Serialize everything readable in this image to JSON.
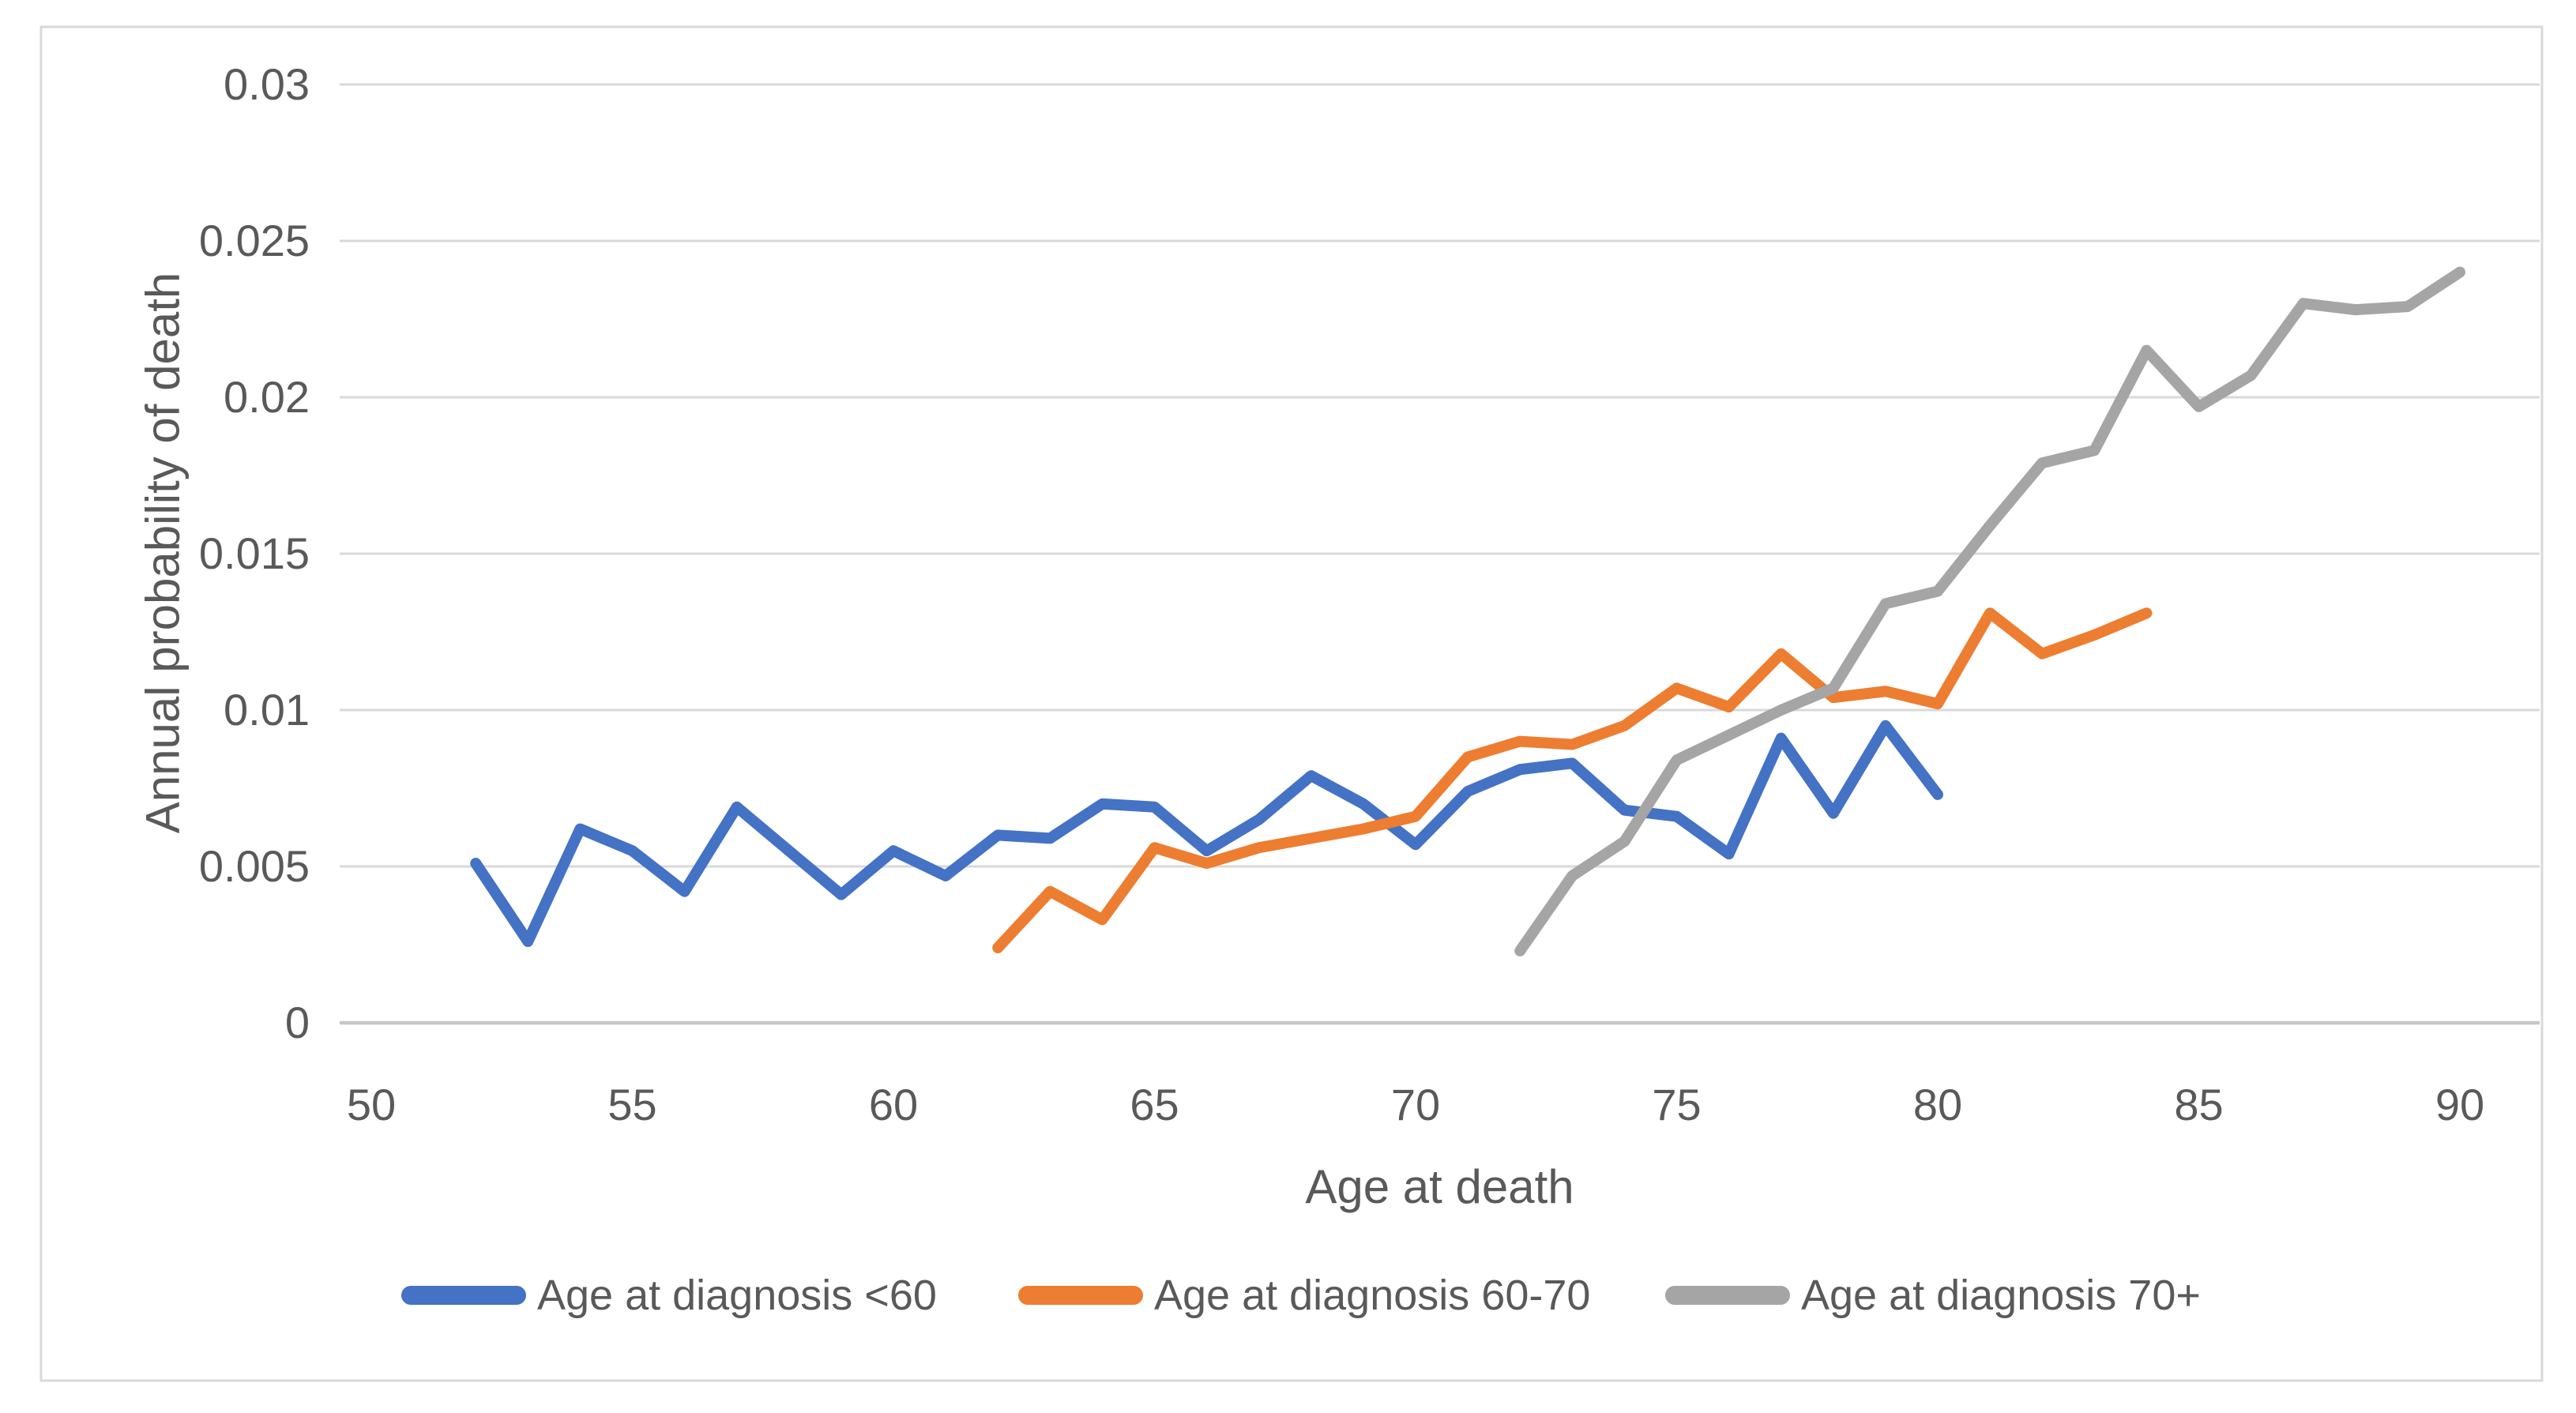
{
  "chart_data": {
    "type": "line",
    "title": "",
    "xlabel": "Age at death",
    "ylabel": "Annual probability of death",
    "xlim": [
      49.4,
      91.6
    ],
    "ylim": [
      0,
      0.03
    ],
    "x_ticks": [
      50,
      55,
      60,
      65,
      70,
      75,
      80,
      85,
      90
    ],
    "y_ticks": [
      0,
      0.005,
      0.01,
      0.015,
      0.02,
      0.025,
      0.03
    ],
    "y_tick_labels": [
      "0",
      "0.005",
      "0.01",
      "0.015",
      "0.02",
      "0.025",
      "0.03"
    ],
    "grid": true,
    "legend_position": "bottom",
    "series": [
      {
        "name": "Age at diagnosis <60",
        "color": "#4472C4",
        "x": [
          52,
          53,
          54,
          55,
          56,
          57,
          58,
          59,
          60,
          61,
          62,
          63,
          64,
          65,
          66,
          67,
          68,
          69,
          70,
          71,
          72,
          73,
          74,
          75,
          76,
          77,
          78,
          79,
          80
        ],
        "values": [
          0.0051,
          0.0026,
          0.0062,
          0.0055,
          0.0042,
          0.0069,
          0.0055,
          0.0041,
          0.0055,
          0.0047,
          0.006,
          0.0059,
          0.007,
          0.0069,
          0.0055,
          0.0065,
          0.0079,
          0.007,
          0.0057,
          0.0074,
          0.0081,
          0.0083,
          0.0068,
          0.0066,
          0.0054,
          0.0091,
          0.0067,
          0.0095,
          0.0073
        ]
      },
      {
        "name": "Age at diagnosis 60-70",
        "color": "#ED7D31",
        "x": [
          62,
          63,
          64,
          65,
          66,
          67,
          68,
          69,
          70,
          71,
          72,
          73,
          74,
          75,
          76,
          77,
          78,
          79,
          80,
          81,
          82,
          83,
          84
        ],
        "values": [
          0.0024,
          0.0042,
          0.0033,
          0.0056,
          0.0051,
          0.0056,
          0.0059,
          0.0062,
          0.0066,
          0.0085,
          0.009,
          0.0089,
          0.0095,
          0.0107,
          0.0101,
          0.0118,
          0.0104,
          0.0106,
          0.0102,
          0.0131,
          0.0118,
          0.0124,
          0.0131
        ]
      },
      {
        "name": "Age at diagnosis 70+",
        "color": "#A5A5A5",
        "x": [
          72,
          73,
          74,
          75,
          76,
          77,
          78,
          79,
          80,
          81,
          82,
          83,
          84,
          85,
          86,
          87,
          88,
          89,
          90
        ],
        "values": [
          0.0023,
          0.0047,
          0.0058,
          0.0084,
          0.0092,
          0.01,
          0.0107,
          0.0134,
          0.0138,
          0.0159,
          0.0179,
          0.0183,
          0.0215,
          0.0197,
          0.0207,
          0.023,
          0.0228,
          0.0229,
          0.024
        ]
      }
    ],
    "colors": {
      "gridline": "#D9D9D9",
      "axis_line": "#C6C6C6",
      "tick_text": "#595959",
      "frame_border": "#D9D9D9",
      "background": "#FFFFFF"
    }
  }
}
